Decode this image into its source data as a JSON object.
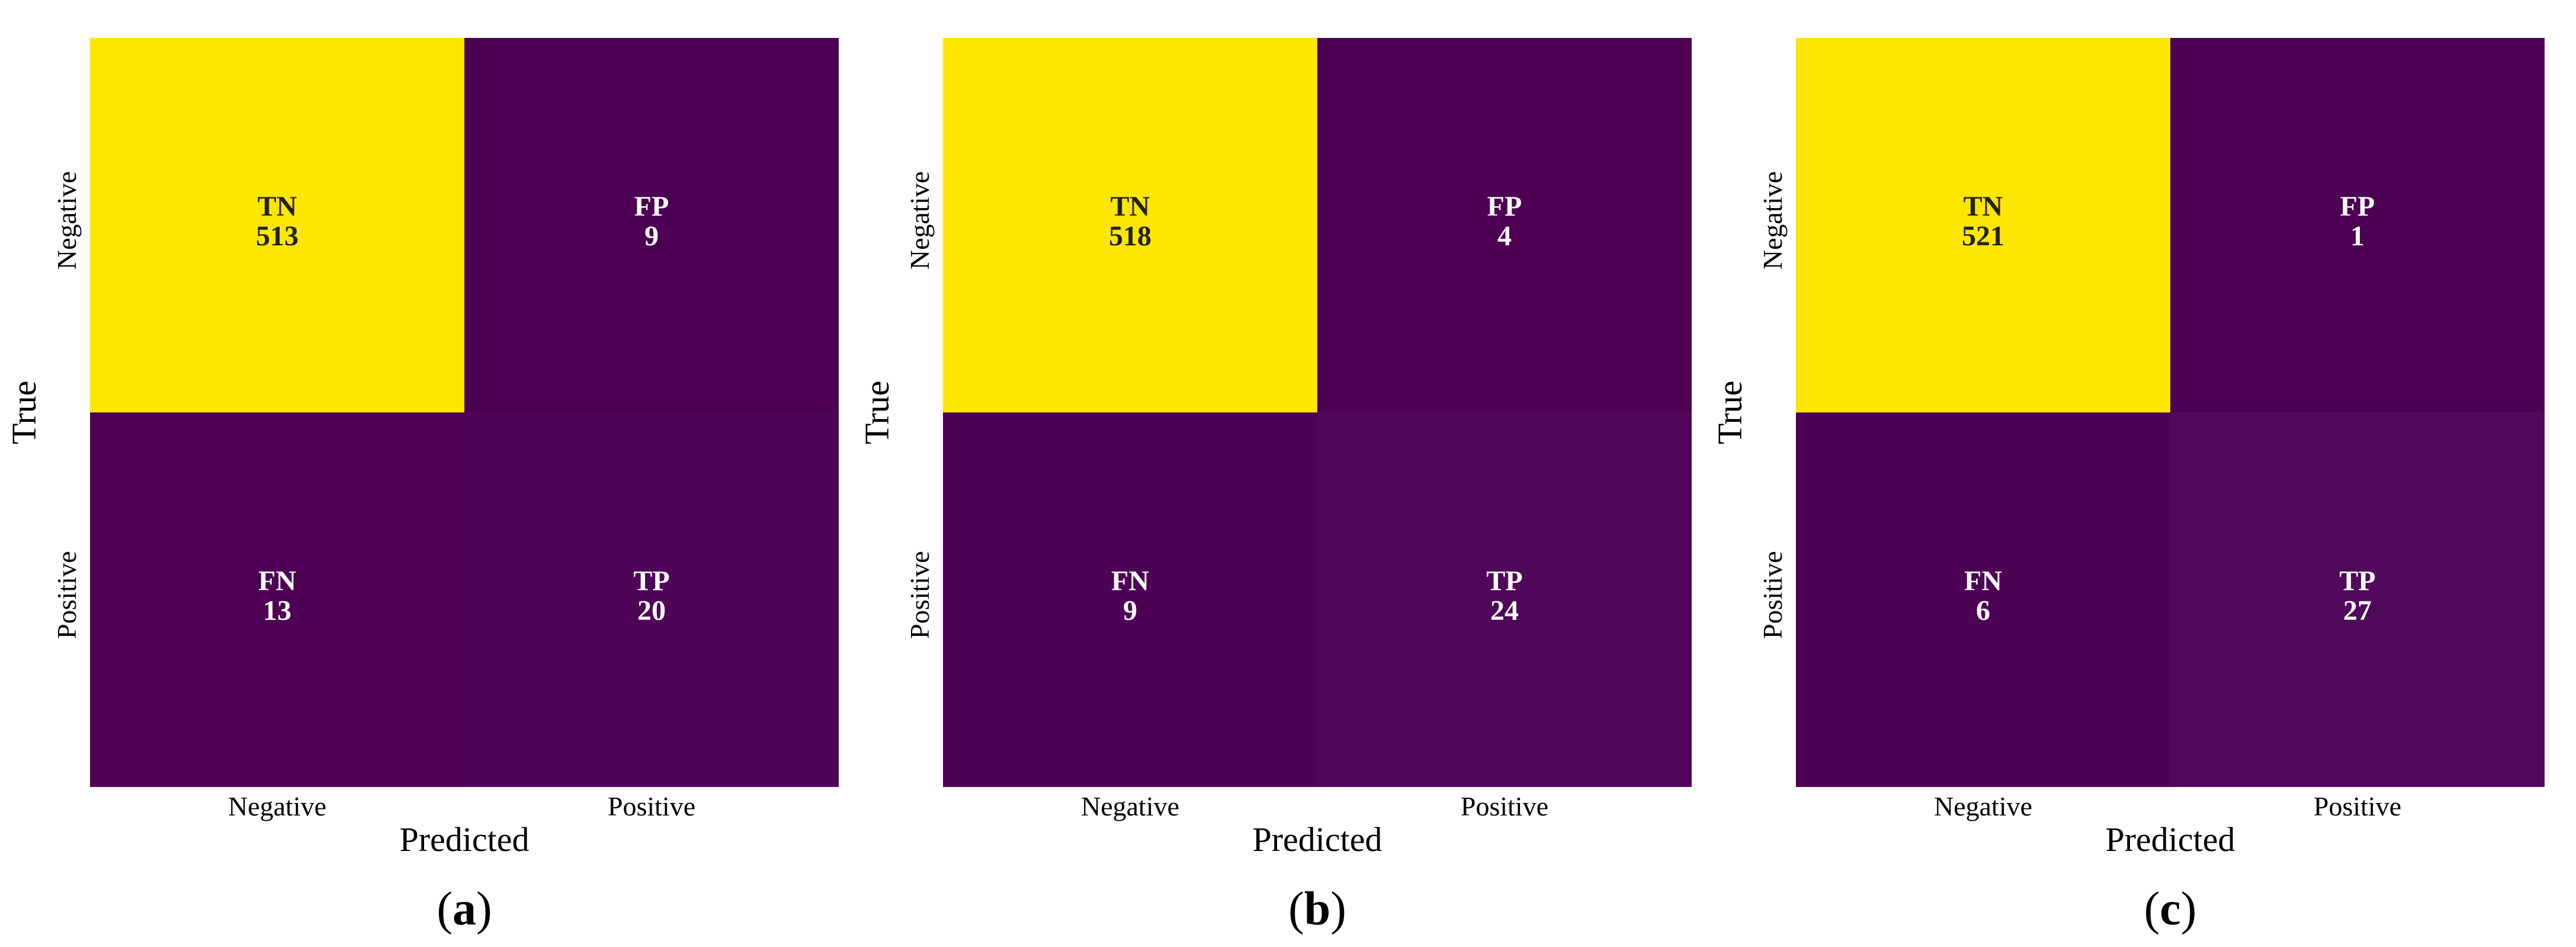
{
  "chart_data": [
    {
      "type": "heatmap",
      "caption_letter": "a",
      "xlabel": "Predicted",
      "ylabel": "True",
      "x_categories": [
        "Negative",
        "Positive"
      ],
      "y_categories": [
        "Negative",
        "Positive"
      ],
      "cells": [
        [
          {
            "label": "TN",
            "value": 513
          },
          {
            "label": "FP",
            "value": 9
          }
        ],
        [
          {
            "label": "FN",
            "value": 13
          },
          {
            "label": "TP",
            "value": 20
          }
        ]
      ],
      "colormap": "viridis"
    },
    {
      "type": "heatmap",
      "caption_letter": "b",
      "xlabel": "Predicted",
      "ylabel": "True",
      "x_categories": [
        "Negative",
        "Positive"
      ],
      "y_categories": [
        "Negative",
        "Positive"
      ],
      "cells": [
        [
          {
            "label": "TN",
            "value": 518
          },
          {
            "label": "FP",
            "value": 4
          }
        ],
        [
          {
            "label": "FN",
            "value": 9
          },
          {
            "label": "TP",
            "value": 24
          }
        ]
      ],
      "colormap": "viridis"
    },
    {
      "type": "heatmap",
      "caption_letter": "c",
      "xlabel": "Predicted",
      "ylabel": "True",
      "x_categories": [
        "Negative",
        "Positive"
      ],
      "y_categories": [
        "Negative",
        "Positive"
      ],
      "cells": [
        [
          {
            "label": "TN",
            "value": 521
          },
          {
            "label": "FP",
            "value": 1
          }
        ],
        [
          {
            "label": "FN",
            "value": 6
          },
          {
            "label": "TP",
            "value": 27
          }
        ]
      ],
      "colormap": "viridis"
    }
  ],
  "colors": {
    "low": "#4d0053",
    "mid": "#5a1a6e",
    "high": "#fde600",
    "text_on_high": "#222222",
    "text_on_low": "#ffffff"
  }
}
